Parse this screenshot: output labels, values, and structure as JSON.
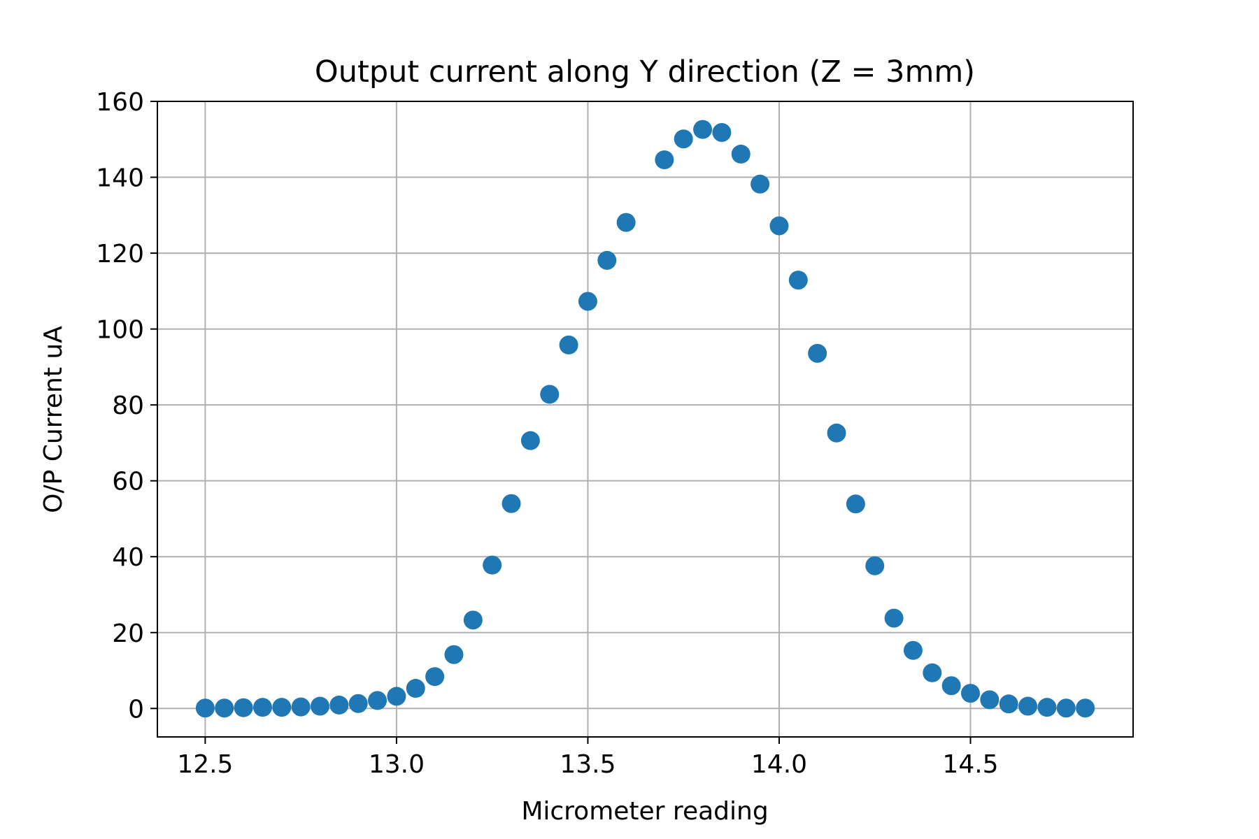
{
  "chart_data": {
    "type": "scatter",
    "title": "Output current along Y direction (Z = 3mm)",
    "xlabel": "Micrometer reading",
    "ylabel": "O/P Current uA",
    "xlim": [
      12.375,
      14.925
    ],
    "ylim": [
      -7.5,
      160
    ],
    "x_ticks": [
      12.5,
      13.0,
      13.5,
      14.0,
      14.5
    ],
    "x_tick_labels": [
      "12.5",
      "13.0",
      "13.5",
      "14.0",
      "14.5"
    ],
    "y_ticks": [
      0,
      20,
      40,
      60,
      80,
      100,
      120,
      140,
      160
    ],
    "y_tick_labels": [
      "0",
      "20",
      "40",
      "60",
      "80",
      "100",
      "120",
      "140",
      "160"
    ],
    "grid": true,
    "color": "#1f77b4",
    "series": [
      {
        "x": [
          12.5,
          12.55,
          12.6,
          12.65,
          12.7,
          12.75,
          12.8,
          12.85,
          12.9,
          12.95,
          13.0,
          13.05,
          13.1,
          13.15,
          13.2,
          13.25,
          13.3,
          13.35,
          13.4,
          13.45,
          13.5,
          13.55,
          13.6,
          13.7,
          13.75,
          13.8,
          13.85,
          13.9,
          13.95,
          14.0,
          14.05,
          14.1,
          14.15,
          14.2,
          14.25,
          14.3,
          14.35,
          14.4,
          14.45,
          14.5,
          14.55,
          14.6,
          14.65,
          14.7,
          14.75,
          14.8
        ],
        "y": [
          0.1,
          0.1,
          0.2,
          0.3,
          0.3,
          0.4,
          0.6,
          0.9,
          1.3,
          2.1,
          3.2,
          5.3,
          8.4,
          14.2,
          23.3,
          37.8,
          54.0,
          70.6,
          82.8,
          95.8,
          107.3,
          118.1,
          128.1,
          144.6,
          150.1,
          152.6,
          151.8,
          146.1,
          138.2,
          127.2,
          112.9,
          93.6,
          72.6,
          53.9,
          37.6,
          23.8,
          15.3,
          9.4,
          6.0,
          4.0,
          2.3,
          1.2,
          0.6,
          0.3,
          0.1,
          0.1
        ]
      }
    ]
  }
}
